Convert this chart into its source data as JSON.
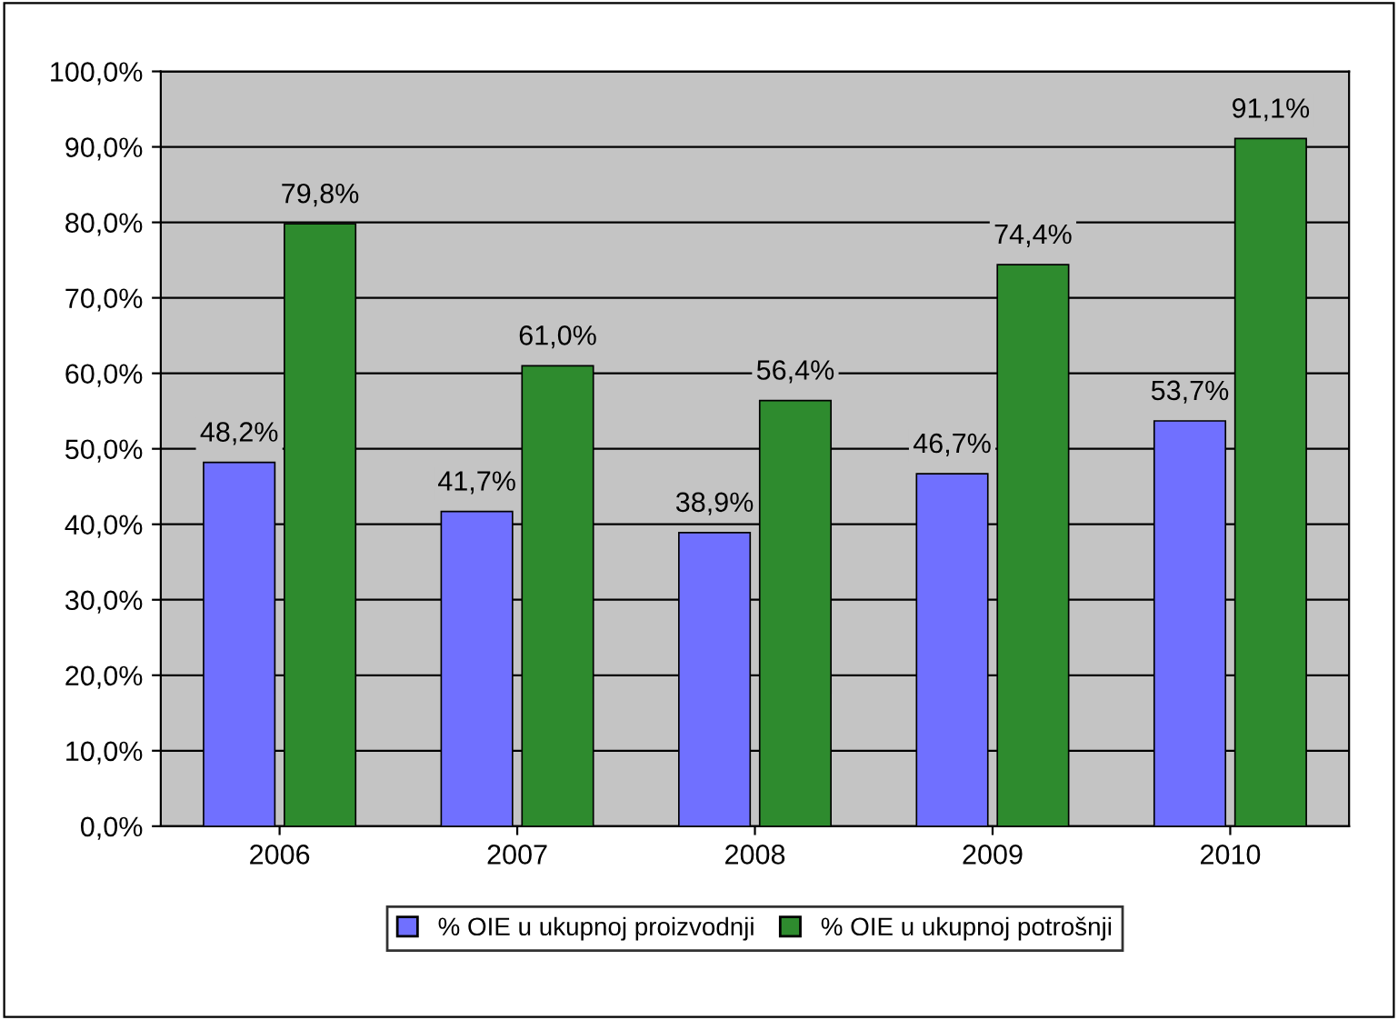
{
  "chart_data": {
    "type": "bar",
    "categories": [
      "2006",
      "2007",
      "2008",
      "2009",
      "2010"
    ],
    "series": [
      {
        "name": "% OIE u ukupnoj proizvodnji",
        "color": "#7070ff",
        "values": [
          48.2,
          41.7,
          38.9,
          46.7,
          53.7
        ],
        "value_labels": [
          "48,2%",
          "41,7%",
          "38,9%",
          "46,7%",
          "53,7%"
        ]
      },
      {
        "name": "% OIE u ukupnoj potrošnji",
        "color": "#2e8b2e",
        "values": [
          79.8,
          61.0,
          56.4,
          74.4,
          91.1
        ],
        "value_labels": [
          "79,8%",
          "61,0%",
          "56,4%",
          "74,4%",
          "91,1%"
        ]
      }
    ],
    "ylim": [
      0,
      100
    ],
    "yticks": [
      {
        "value": 0,
        "label": "0,0%"
      },
      {
        "value": 10,
        "label": "10,0%"
      },
      {
        "value": 20,
        "label": "20,0%"
      },
      {
        "value": 30,
        "label": "30,0%"
      },
      {
        "value": 40,
        "label": "40,0%"
      },
      {
        "value": 50,
        "label": "50,0%"
      },
      {
        "value": 60,
        "label": "60,0%"
      },
      {
        "value": 70,
        "label": "70,0%"
      },
      {
        "value": 80,
        "label": "80,0%"
      },
      {
        "value": 90,
        "label": "90,0%"
      },
      {
        "value": 100,
        "label": "100,0%"
      }
    ],
    "grid": "y",
    "legend": "bottom"
  }
}
